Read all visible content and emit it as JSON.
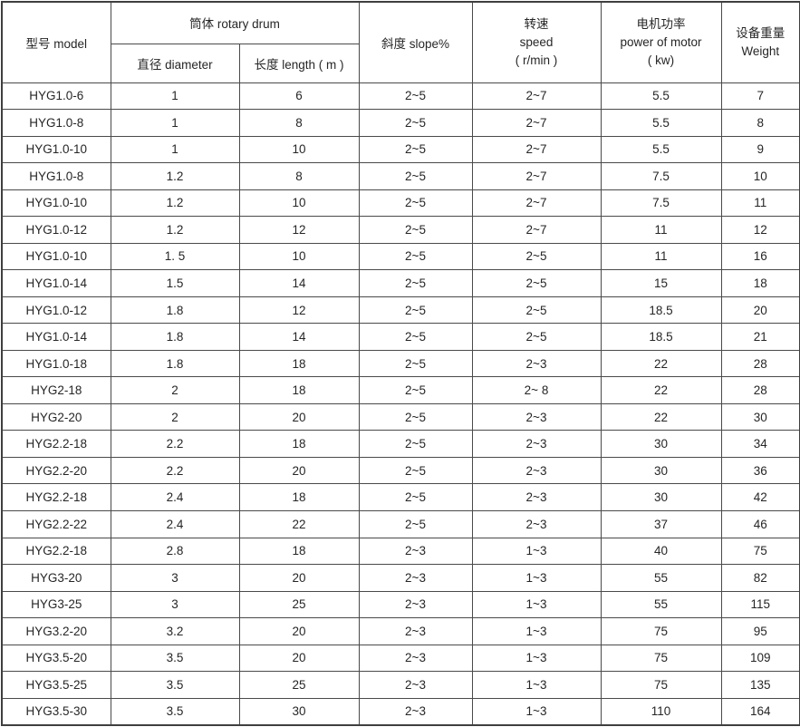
{
  "table": {
    "header": {
      "model": "型号 model",
      "drum": "筒体 rotary drum",
      "diameter": "直径 diameter",
      "length": "长度 length ( m )",
      "slope": "斜度 slope%",
      "speed_zh": "转速",
      "speed_en": "speed",
      "speed_unit": "( r/min )",
      "power_zh": "电机功率",
      "power_en": "power of motor",
      "power_unit": "( kw)",
      "weight_zh": "设备重量",
      "weight_en": "Weight"
    },
    "column_keys": [
      "model",
      "diameter",
      "length",
      "slope",
      "speed",
      "power",
      "weight"
    ],
    "rows": [
      [
        "HYG1.0-6",
        "1",
        "6",
        "2~5",
        "2~7",
        "5.5",
        "7"
      ],
      [
        "HYG1.0-8",
        "1",
        "8",
        "2~5",
        "2~7",
        "5.5",
        "8"
      ],
      [
        "HYG1.0-10",
        "1",
        "10",
        "2~5",
        "2~7",
        "5.5",
        "9"
      ],
      [
        "HYG1.0-8",
        "1.2",
        "8",
        "2~5",
        "2~7",
        "7.5",
        "10"
      ],
      [
        "HYG1.0-10",
        "1.2",
        "10",
        "2~5",
        "2~7",
        "7.5",
        "11"
      ],
      [
        "HYG1.0-12",
        "1.2",
        "12",
        "2~5",
        "2~7",
        "11",
        "12"
      ],
      [
        "HYG1.0-10",
        "1. 5",
        "10",
        "2~5",
        "2~5",
        "11",
        "16"
      ],
      [
        "HYG1.0-14",
        "1.5",
        "14",
        "2~5",
        "2~5",
        "15",
        "18"
      ],
      [
        "HYG1.0-12",
        "1.8",
        "12",
        "2~5",
        "2~5",
        "18.5",
        "20"
      ],
      [
        "HYG1.0-14",
        "1.8",
        "14",
        "2~5",
        "2~5",
        "18.5",
        "21"
      ],
      [
        "HYG1.0-18",
        "1.8",
        "18",
        "2~5",
        "2~3",
        "22",
        "28"
      ],
      [
        "HYG2-18",
        "2",
        "18",
        "2~5",
        "2~ 8",
        "22",
        "28"
      ],
      [
        "HYG2-20",
        "2",
        "20",
        "2~5",
        "2~3",
        "22",
        "30"
      ],
      [
        "HYG2.2-18",
        "2.2",
        "18",
        "2~5",
        "2~3",
        "30",
        "34"
      ],
      [
        "HYG2.2-20",
        "2.2",
        "20",
        "2~5",
        "2~3",
        "30",
        "36"
      ],
      [
        "HYG2.2-18",
        "2.4",
        "18",
        "2~5",
        "2~3",
        "30",
        "42"
      ],
      [
        "HYG2.2-22",
        "2.4",
        "22",
        "2~5",
        "2~3",
        "37",
        "46"
      ],
      [
        "HYG2.2-18",
        "2.8",
        "18",
        "2~3",
        "1~3",
        "40",
        "75"
      ],
      [
        "HYG3-20",
        "3",
        "20",
        "2~3",
        "1~3",
        "55",
        "82"
      ],
      [
        "HYG3-25",
        "3",
        "25",
        "2~3",
        "1~3",
        "55",
        "115"
      ],
      [
        "HYG3.2-20",
        "3.2",
        "20",
        "2~3",
        "1~3",
        "75",
        "95"
      ],
      [
        "HYG3.5-20",
        "3.5",
        "20",
        "2~3",
        "1~3",
        "75",
        "109"
      ],
      [
        "HYG3.5-25",
        "3.5",
        "25",
        "2~3",
        "1~3",
        "75",
        "135"
      ],
      [
        "HYG3.5-30",
        "3.5",
        "30",
        "2~3",
        "1~3",
        "110",
        "164"
      ]
    ]
  }
}
